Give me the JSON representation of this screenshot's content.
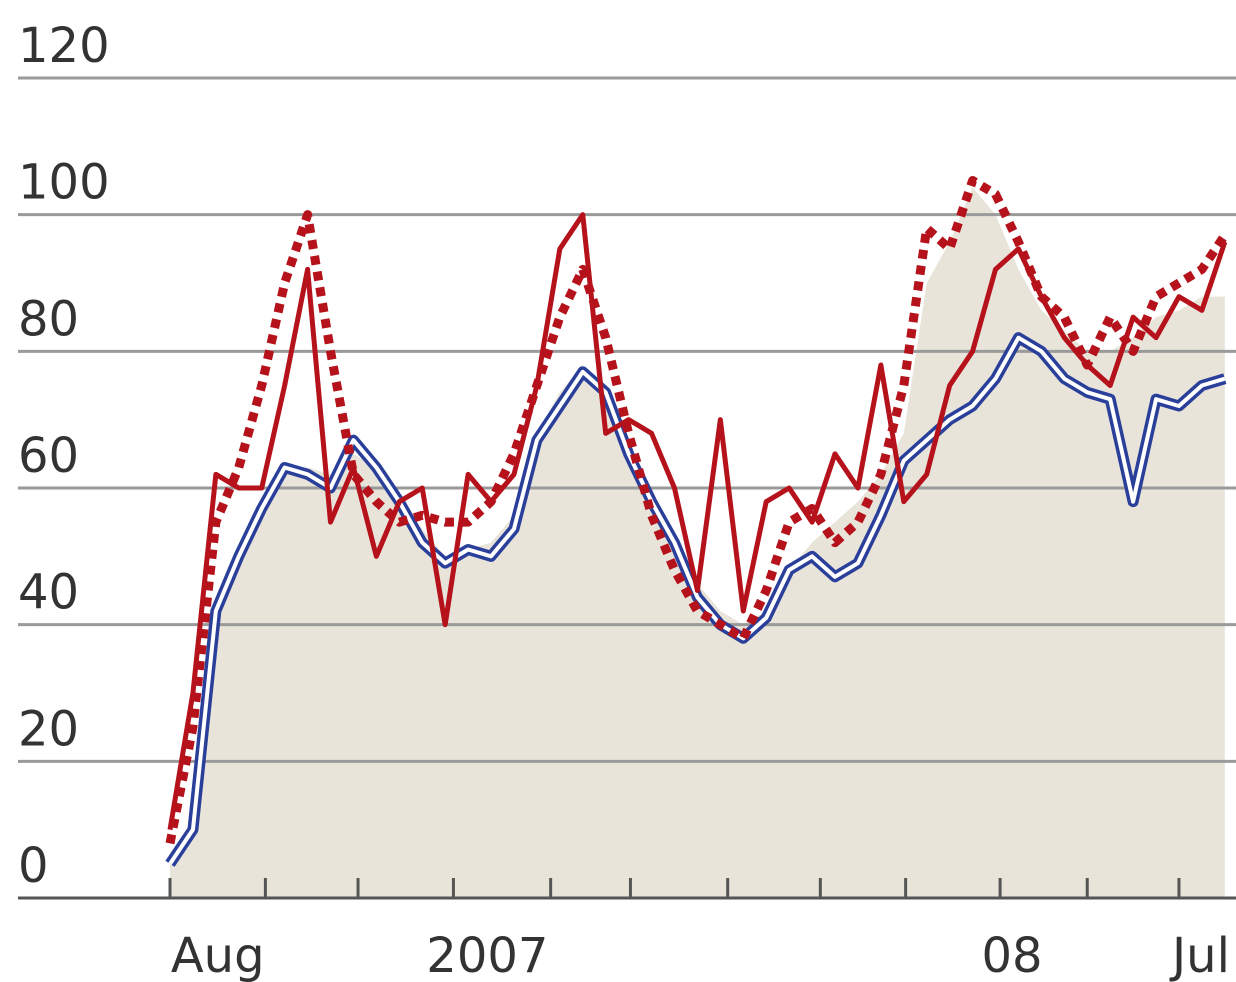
{
  "chart_data": {
    "type": "line",
    "x": [
      0,
      0.25,
      0.5,
      0.75,
      1,
      1.25,
      1.5,
      1.75,
      2,
      2.25,
      2.5,
      2.75,
      3,
      3.25,
      3.5,
      3.75,
      4,
      4.25,
      4.5,
      4.75,
      5,
      5.25,
      5.5,
      5.75,
      6,
      6.25,
      6.5,
      6.75,
      7,
      7.25,
      7.5,
      7.75,
      8,
      8.25,
      8.5,
      8.75,
      9,
      9.25,
      9.5,
      9.75,
      10,
      10.25,
      10.5,
      10.75,
      11,
      11.25,
      11.5
    ],
    "series": [
      {
        "type": "area",
        "color": "#e8e4da",
        "values": [
          5,
          10,
          42,
          50,
          57,
          63,
          63,
          62,
          65,
          63,
          58,
          54,
          50,
          51,
          52,
          56,
          68,
          74,
          78,
          75,
          66,
          60,
          53,
          46,
          42,
          40,
          42,
          48,
          52,
          55,
          58,
          62,
          68,
          90,
          96,
          104,
          100,
          92,
          86,
          83,
          80,
          80,
          82,
          85,
          86,
          88,
          88
        ]
      },
      {
        "type": "line",
        "style": "double",
        "color": "#2a3f9a",
        "values": [
          5,
          10,
          42,
          50,
          57,
          63,
          62,
          60,
          67,
          63,
          58,
          52,
          49,
          51,
          50,
          54,
          67,
          72,
          77,
          74,
          65,
          58,
          52,
          44,
          40,
          38,
          41,
          48,
          50,
          47,
          49,
          56,
          64,
          67,
          70,
          72,
          76,
          82,
          80,
          76,
          74,
          73,
          58,
          73,
          72,
          75,
          76
        ]
      },
      {
        "type": "line",
        "style": "dotted",
        "color": "#b5121b",
        "values": [
          8,
          25,
          55,
          63,
          75,
          90,
          100,
          80,
          62,
          58,
          55,
          56,
          55,
          55,
          58,
          65,
          75,
          85,
          92,
          82,
          68,
          56,
          48,
          42,
          40,
          38,
          45,
          55,
          57,
          52,
          55,
          62,
          75,
          98,
          95,
          105,
          103,
          96,
          88,
          85,
          78,
          85,
          80,
          88,
          90,
          92,
          97
        ]
      },
      {
        "type": "line",
        "style": "solid",
        "color": "#b5121b",
        "values": [
          10,
          30,
          62,
          60,
          60,
          75,
          92,
          55,
          63,
          50,
          58,
          60,
          40,
          62,
          58,
          62,
          75,
          95,
          100,
          68,
          70,
          68,
          60,
          45,
          70,
          42,
          58,
          60,
          55,
          65,
          60,
          78,
          58,
          62,
          75,
          80,
          92,
          95,
          88,
          82,
          78,
          75,
          85,
          82,
          88,
          86,
          96
        ]
      }
    ],
    "xlim": [
      0,
      11.6
    ],
    "xticks": [
      0,
      1.04,
      2.05,
      3.09,
      4.15,
      5.02,
      6.08,
      7.09,
      8.02,
      9.05,
      10.0,
      11.0
    ],
    "xlabels": [
      {
        "value": 0.52,
        "label": "Aug"
      },
      {
        "value": 3.46,
        "label": "2007"
      },
      {
        "value": 9.18,
        "label": "08"
      },
      {
        "value": 11.24,
        "label": "Jul"
      }
    ],
    "ylim": [
      0,
      120
    ],
    "yticks": [
      0,
      20,
      40,
      60,
      80,
      100,
      120
    ],
    "grid": true
  }
}
